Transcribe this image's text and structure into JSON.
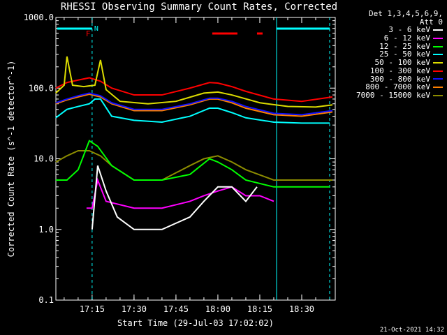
{
  "window": {
    "title": "RHESSI Observing Summary Count Rates, Corrected",
    "footer_date": "21-Oct-2021 14:32"
  },
  "legend": {
    "header": [
      "Det 1,3,4,5,6,9,",
      "Att 0"
    ],
    "bands": [
      {
        "label": "3 - 6 keV",
        "color": "#ffffff"
      },
      {
        "label": "6 - 12 keV",
        "color": "#ff00ff"
      },
      {
        "label": "12 - 25 keV",
        "color": "#00ff00"
      },
      {
        "label": "25 - 50 keV",
        "color": "#00ffff"
      },
      {
        "label": "50 - 100 keV",
        "color": "#dcdc00"
      },
      {
        "label": "100 - 300 keV",
        "color": "#ff0000"
      },
      {
        "label": "300 - 800 keV",
        "color": "#1010ff"
      },
      {
        "label": "800 - 7000 keV",
        "color": "#ff8000"
      },
      {
        "label": "7000 - 15000 keV",
        "color": "#8c8c00"
      }
    ]
  },
  "chart_data": {
    "type": "line",
    "title": "RHESSI Observing Summary Count Rates, Corrected",
    "xlabel": "Start Time (29-Jul-03 17:02:02)",
    "ylabel": "Corrected Count Rate (s^-1 detector^-1)",
    "yscale": "log",
    "ylim": [
      0.1,
      1000
    ],
    "xlim": [
      "17:02:02",
      "18:42:00"
    ],
    "xticks": [
      "17:15",
      "17:30",
      "17:45",
      "18:00",
      "18:15",
      "18:30"
    ],
    "yticks": [
      "0.1",
      "1.0",
      "10.0",
      "100.0",
      "1000.0"
    ],
    "flags": {
      "F_label": "F",
      "N_label": "N"
    },
    "series": [
      {
        "name": "3 - 6 keV",
        "color": "#ffffff",
        "x": [
          "17:15",
          "17:17",
          "17:20",
          "17:24",
          "17:30",
          "17:40",
          "17:50",
          "17:55",
          "18:00",
          "18:05",
          "18:10",
          "18:14"
        ],
        "y": [
          1.0,
          8.0,
          3.5,
          1.5,
          1.0,
          1.0,
          1.5,
          2.5,
          4.0,
          4.0,
          2.5,
          4.0
        ]
      },
      {
        "name": "6 - 12 keV",
        "color": "#ff00ff",
        "x": [
          "17:13",
          "17:15",
          "17:17",
          "17:20",
          "17:30",
          "17:40",
          "17:50",
          "17:55",
          "18:00",
          "18:05",
          "18:10",
          "18:15",
          "18:20"
        ],
        "y": [
          2.0,
          2.0,
          5.0,
          2.5,
          2.0,
          2.0,
          2.5,
          3.0,
          3.5,
          4.0,
          3.0,
          3.0,
          2.5
        ]
      },
      {
        "name": "12 - 25 keV",
        "color": "#00ff00",
        "x": [
          "17:02",
          "17:06",
          "17:10",
          "17:14",
          "17:17",
          "17:22",
          "17:30",
          "17:40",
          "17:50",
          "17:57",
          "18:00",
          "18:05",
          "18:10",
          "18:20",
          "18:30",
          "18:40"
        ],
        "y": [
          5.0,
          5.0,
          7.0,
          18.0,
          15.0,
          8.0,
          5.0,
          5.0,
          6.0,
          10.0,
          9.0,
          7.0,
          5.0,
          4.0,
          4.0,
          4.0
        ]
      },
      {
        "name": "25 - 50 keV",
        "color": "#00ffff",
        "x": [
          "17:02",
          "17:06",
          "17:10",
          "17:14",
          "17:16",
          "17:18",
          "17:22",
          "17:30",
          "17:40",
          "17:50",
          "17:57",
          "18:00",
          "18:05",
          "18:10",
          "18:20",
          "18:30",
          "18:40"
        ],
        "y": [
          38,
          50,
          55,
          60,
          70,
          70,
          40,
          35,
          33,
          40,
          52,
          52,
          45,
          38,
          33,
          32,
          32
        ]
      },
      {
        "name": "50 - 100 keV",
        "color": "#dcdc00",
        "x": [
          "17:02",
          "17:05",
          "17:06",
          "17:08",
          "17:12",
          "17:16",
          "17:18",
          "17:20",
          "17:25",
          "17:35",
          "17:45",
          "17:55",
          "18:00",
          "18:05",
          "18:15",
          "18:25",
          "18:35",
          "18:41"
        ],
        "y": [
          85,
          110,
          280,
          110,
          105,
          110,
          250,
          95,
          65,
          60,
          65,
          85,
          88,
          80,
          62,
          55,
          54,
          58
        ]
      },
      {
        "name": "100 - 300 keV",
        "color": "#ff0000",
        "x": [
          "17:02",
          "17:06",
          "17:10",
          "17:14",
          "17:18",
          "17:22",
          "17:30",
          "17:40",
          "17:50",
          "17:57",
          "18:00",
          "18:05",
          "18:10",
          "18:20",
          "18:30",
          "18:41"
        ],
        "y": [
          100,
          120,
          130,
          140,
          125,
          100,
          80,
          80,
          100,
          120,
          118,
          105,
          90,
          70,
          65,
          75
        ]
      },
      {
        "name": "300 - 800 keV",
        "color": "#1010ff",
        "x": [
          "17:02",
          "17:06",
          "17:10",
          "17:14",
          "17:18",
          "17:22",
          "17:30",
          "17:40",
          "17:50",
          "17:57",
          "18:00",
          "18:05",
          "18:10",
          "18:20",
          "18:30",
          "18:41"
        ],
        "y": [
          62,
          70,
          78,
          85,
          78,
          62,
          50,
          50,
          60,
          72,
          72,
          65,
          55,
          44,
          42,
          48
        ]
      },
      {
        "name": "800 - 7000 keV",
        "color": "#ff8000",
        "x": [
          "17:02",
          "17:06",
          "17:10",
          "17:14",
          "17:18",
          "17:22",
          "17:30",
          "17:40",
          "17:50",
          "17:57",
          "18:00",
          "18:05",
          "18:10",
          "18:20",
          "18:30",
          "18:41"
        ],
        "y": [
          60,
          68,
          75,
          82,
          75,
          60,
          48,
          48,
          58,
          70,
          70,
          62,
          52,
          42,
          40,
          46
        ]
      },
      {
        "name": "7000 - 15000 keV",
        "color": "#8c8c00",
        "x": [
          "17:02",
          "17:06",
          "17:10",
          "17:14",
          "17:18",
          "17:22",
          "17:30",
          "17:40",
          "17:50",
          "17:55",
          "18:00",
          "18:05",
          "18:10",
          "18:20",
          "18:30",
          "18:41"
        ],
        "y": [
          9,
          11,
          13,
          13,
          11,
          8,
          5,
          5,
          8,
          10,
          11,
          9,
          7,
          5,
          5,
          5
        ]
      }
    ]
  }
}
